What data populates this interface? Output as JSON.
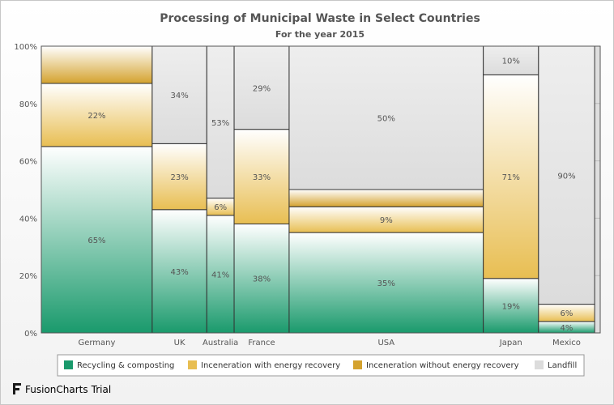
{
  "chart_data": {
    "type": "marimekko",
    "title": "Processing of Municipal Waste in Select Countries",
    "subtitle": "For the year 2015",
    "ylim": [
      0,
      100
    ],
    "y_ticks": [
      "0%",
      "20%",
      "40%",
      "60%",
      "80%",
      "100%"
    ],
    "categories": [
      "Germany",
      "UK",
      "Australia",
      "France",
      "USA",
      "Japan",
      "Mexico"
    ],
    "category_share": [
      0.1984,
      0.0977,
      0.0489,
      0.0984,
      0.3474,
      0.0988,
      0.1004
    ],
    "series": [
      {
        "name": "Recycling & composting",
        "color": "#1a9a6c",
        "values": [
          65,
          43,
          41,
          38,
          35,
          19,
          4
        ],
        "labels": [
          "65%",
          "43%",
          "41%",
          "38%",
          "35%",
          "19%",
          "4%"
        ]
      },
      {
        "name": "Inceneration with energy recovery",
        "color": "#e8be52",
        "values": [
          22,
          23,
          6,
          33,
          9,
          71,
          6
        ],
        "labels": [
          "22%",
          "23%",
          "6%",
          "33%",
          "9%",
          "71%",
          "6%"
        ]
      },
      {
        "name": "Inceneration without energy recovery",
        "color": "#d4a22e",
        "values": [
          13,
          0,
          0,
          0,
          6,
          0,
          0
        ],
        "labels": [
          "",
          "",
          "",
          "",
          "",
          "",
          ""
        ]
      },
      {
        "name": "Landfill",
        "color": "#dcdcdc",
        "values": [
          0,
          34,
          53,
          29,
          50,
          10,
          90
        ],
        "labels": [
          "",
          "34%",
          "53%",
          "29%",
          "50%",
          "10%",
          "90%"
        ]
      }
    ],
    "grid": true,
    "legend_position": "bottom"
  },
  "brand": {
    "logo_text": "FusionCharts",
    "suffix": "Trial"
  }
}
